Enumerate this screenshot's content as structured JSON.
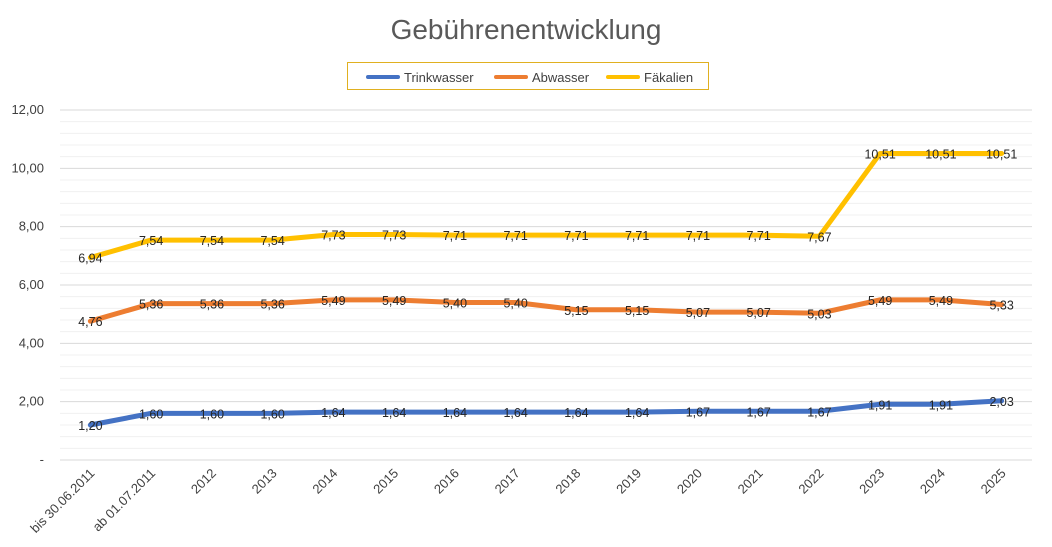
{
  "chart_data": {
    "type": "line",
    "title": "Gebührenentwicklung",
    "xlabel": "",
    "ylabel": "",
    "ylim": [
      0,
      12
    ],
    "y_ticks": [
      "-",
      "2,00",
      "4,00",
      "6,00",
      "8,00",
      "10,00",
      "12,00"
    ],
    "grid": true,
    "legend_position": "top",
    "categories": [
      "bis 30.06.2011",
      "ab 01.07.2011",
      "2012",
      "2013",
      "2014",
      "2015",
      "2016",
      "2017",
      "2018",
      "2019",
      "2020",
      "2021",
      "2022",
      "2023",
      "2024",
      "2025"
    ],
    "series": [
      {
        "name": "Trinkwasser",
        "color": "#4472c4",
        "values": [
          1.2,
          1.6,
          1.6,
          1.6,
          1.64,
          1.64,
          1.64,
          1.64,
          1.64,
          1.64,
          1.67,
          1.67,
          1.67,
          1.91,
          1.91,
          2.03
        ],
        "labels": [
          "1,20",
          "1,60",
          "1,60",
          "1,60",
          "1,64",
          "1,64",
          "1,64",
          "1,64",
          "1,64",
          "1,64",
          "1,67",
          "1,67",
          "1,67",
          "1,91",
          "1,91",
          "2,03"
        ]
      },
      {
        "name": "Abwasser",
        "color": "#ed7d31",
        "values": [
          4.76,
          5.36,
          5.36,
          5.36,
          5.49,
          5.49,
          5.4,
          5.4,
          5.15,
          5.15,
          5.07,
          5.07,
          5.03,
          5.49,
          5.49,
          5.33
        ],
        "labels": [
          "4,76",
          "5,36",
          "5,36",
          "5,36",
          "5,49",
          "5,49",
          "5,40",
          "5,40",
          "5,15",
          "5,15",
          "5,07",
          "5,07",
          "5,03",
          "5,49",
          "5,49",
          "5,33"
        ]
      },
      {
        "name": "Fäkalien",
        "color": "#ffc000",
        "values": [
          6.94,
          7.54,
          7.54,
          7.54,
          7.73,
          7.73,
          7.71,
          7.71,
          7.71,
          7.71,
          7.71,
          7.71,
          7.67,
          10.51,
          10.51,
          10.51
        ],
        "labels": [
          "6,94",
          "7,54",
          "7,54",
          "7,54",
          "7,73",
          "7,73",
          "7,71",
          "7,71",
          "7,71",
          "7,71",
          "7,71",
          "7,71",
          "7,67",
          "10,51",
          "10,51",
          "10,51"
        ]
      }
    ]
  }
}
